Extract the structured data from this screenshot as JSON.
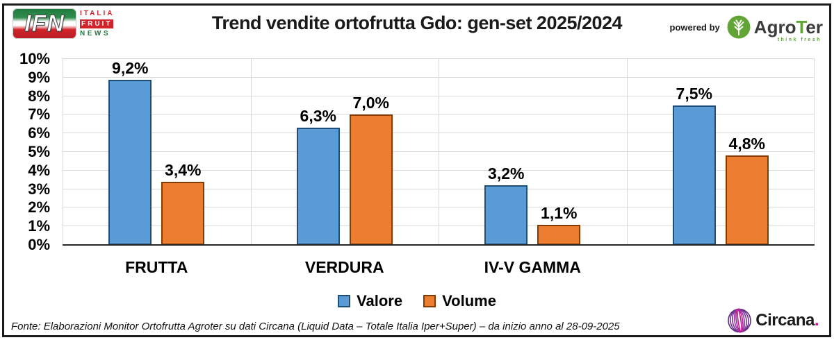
{
  "header": {
    "title": "Trend vendite ortofrutta Gdo: gen-set 2025/2024",
    "ifn": {
      "initials": "IFN",
      "italia": "ITALIA",
      "fruit": "FRUIT",
      "news": "NEWS"
    },
    "powered_by_label": "powered by",
    "agroter": {
      "prefix": "Agro",
      "accent": "T",
      "suffix": "er",
      "tagline": "think fresh"
    }
  },
  "chart_data": {
    "type": "bar",
    "title": "Trend vendite ortofrutta Gdo: gen-set 2025/2024",
    "categories": [
      "FRUTTA",
      "VERDURA",
      "IV-V GAMMA",
      ""
    ],
    "series": [
      {
        "name": "Valore",
        "color": "#5B9BD5",
        "border": "#1F4E79",
        "values": [
          9.2,
          6.3,
          3.2,
          7.5
        ],
        "labels": [
          "9,2%",
          "6,3%",
          "3,2%",
          "7,5%"
        ]
      },
      {
        "name": "Volume",
        "color": "#ED7D31",
        "border": "#833C00",
        "values": [
          3.4,
          7.0,
          1.1,
          4.8
        ],
        "labels": [
          "3,4%",
          "7,0%",
          "1,1%",
          "4,8%"
        ]
      }
    ],
    "ylim": [
      0,
      10
    ],
    "ytick_step": 1,
    "ytick_labels": [
      "0%",
      "1%",
      "2%",
      "3%",
      "4%",
      "5%",
      "6%",
      "7%",
      "8%",
      "9%",
      "10%"
    ],
    "grid": true,
    "legend_position": "bottom"
  },
  "footer": {
    "source": "Fonte: Elaborazioni Monitor Ortofrutta Agroter su dati Circana (Liquid Data – Totale Italia Iper+Super) –  da inizio anno al 28-09-2025",
    "circana_text": "Circana",
    "circana_dot": "."
  },
  "colors": {
    "grid": "#D9D9D9",
    "axis": "#262626",
    "frame": "#1A1A1A",
    "valore": "#5B9BD5",
    "volume": "#ED7D31",
    "ifn_green": "#1F7A3D",
    "ifn_red": "#D2232A",
    "agroter_green": "#63A436",
    "circana_purple": "#5C2D82",
    "circana_magenta": "#C6168D"
  }
}
